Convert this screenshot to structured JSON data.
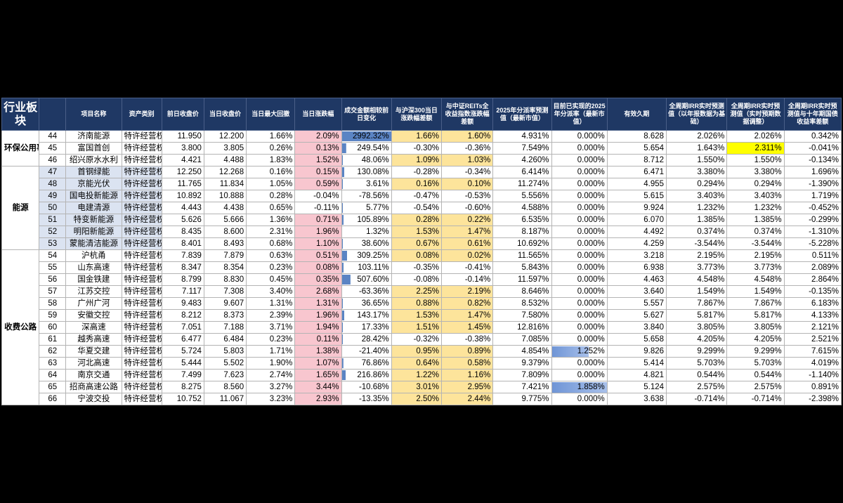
{
  "headers": [
    "行业板块",
    "",
    "项目名称",
    "资产类别",
    "前日收盘价",
    "当日收盘价",
    "当日最大回撤",
    "当日涨跌幅",
    "成交金额相较前日变化",
    "与沪深300当日涨跌幅差额",
    "与中证REITs全收益指数涨跌幅差额",
    "2025年分派率预测值（最新市值）",
    "目前已实现的2025年分派率（最新市值）",
    "有效久期",
    "全周期IRR实时预测值（以年报数据为基础）",
    "全周期IRR实时预测值（实时预期数据调整）",
    "全周期IRR实时预测值与十年期国债收益率差额"
  ],
  "sectors": [
    {
      "label": "环保公用事业",
      "rows": 3
    },
    {
      "label": "能源",
      "rows": 7
    },
    {
      "label": "收费公路",
      "rows": 13
    }
  ],
  "rows": [
    {
      "idx": "44",
      "name": "济南能源",
      "type": "特许经营权",
      "prev": "11.950",
      "close": "12.200",
      "dd": "1.66%",
      "chg": "2.09%",
      "chg_hl": "red",
      "vol": "2992.32%",
      "vol_bar": 1.0,
      "hs": "1.66%",
      "hs_hl": "yel",
      "reits": "1.60%",
      "reits_hl": "yel",
      "dist": "4.931%",
      "real": "0.000%",
      "real_bar": 0,
      "dur": "8.628",
      "irr1": "2.026%",
      "irr2": "2.026%",
      "irr2_hl": "",
      "spread": "0.342%"
    },
    {
      "idx": "45",
      "name": "富国首创",
      "type": "特许经营权",
      "prev": "3.800",
      "close": "3.805",
      "dd": "0.26%",
      "chg": "0.13%",
      "chg_hl": "red",
      "vol": "249.54%",
      "vol_bar": 0.083,
      "hs": "-0.30%",
      "hs_hl": "",
      "reits": "-0.36%",
      "reits_hl": "",
      "dist": "7.549%",
      "real": "0.000%",
      "real_bar": 0,
      "dur": "5.654",
      "irr1": "1.643%",
      "irr2": "2.311%",
      "irr2_hl": "hl",
      "spread": "-0.041%"
    },
    {
      "idx": "46",
      "name": "绍兴原水水利",
      "type": "特许经营权",
      "prev": "4.421",
      "close": "4.488",
      "dd": "1.83%",
      "chg": "1.52%",
      "chg_hl": "red",
      "vol": "48.06%",
      "vol_bar": 0.016,
      "hs": "1.09%",
      "hs_hl": "yel",
      "reits": "1.03%",
      "reits_hl": "yel",
      "dist": "4.260%",
      "real": "0.000%",
      "real_bar": 0,
      "dur": "8.712",
      "irr1": "1.550%",
      "irr2": "1.550%",
      "irr2_hl": "",
      "spread": "-0.134%"
    },
    {
      "idx": "47",
      "name": "首钢绿能",
      "type": "特许经营权",
      "prev": "12.250",
      "close": "12.268",
      "dd": "0.16%",
      "chg": "0.15%",
      "chg_hl": "red",
      "vol": "130.08%",
      "vol_bar": 0.043,
      "hs": "-0.28%",
      "hs_hl": "",
      "reits": "-0.34%",
      "reits_hl": "",
      "dist": "6.414%",
      "real": "0.000%",
      "real_bar": 0,
      "dur": "6.471",
      "irr1": "3.380%",
      "irr2": "3.380%",
      "irr2_hl": "",
      "spread": "1.696%"
    },
    {
      "idx": "48",
      "name": "京能光伏",
      "type": "特许经营权",
      "prev": "11.765",
      "close": "11.834",
      "dd": "1.05%",
      "chg": "0.59%",
      "chg_hl": "red",
      "vol": "3.61%",
      "vol_bar": 0.001,
      "hs": "0.16%",
      "hs_hl": "yel",
      "reits": "0.10%",
      "reits_hl": "yel",
      "dist": "11.274%",
      "real": "0.000%",
      "real_bar": 0,
      "dur": "4.955",
      "irr1": "0.294%",
      "irr2": "0.294%",
      "irr2_hl": "",
      "spread": "-1.390%"
    },
    {
      "idx": "49",
      "name": "国电投新能源",
      "type": "特许经营权",
      "prev": "10.892",
      "close": "10.888",
      "dd": "0.28%",
      "chg": "-0.04%",
      "chg_hl": "",
      "vol": "-78.56%",
      "vol_bar": 0,
      "hs": "-0.47%",
      "hs_hl": "",
      "reits": "-0.53%",
      "reits_hl": "",
      "dist": "5.556%",
      "real": "0.000%",
      "real_bar": 0,
      "dur": "5.615",
      "irr1": "3.403%",
      "irr2": "3.403%",
      "irr2_hl": "",
      "spread": "1.719%"
    },
    {
      "idx": "50",
      "name": "电建清源",
      "type": "特许经营权",
      "prev": "4.443",
      "close": "4.438",
      "dd": "0.65%",
      "chg": "-0.11%",
      "chg_hl": "",
      "vol": "5.77%",
      "vol_bar": 0.002,
      "hs": "-0.54%",
      "hs_hl": "",
      "reits": "-0.60%",
      "reits_hl": "",
      "dist": "4.588%",
      "real": "0.000%",
      "real_bar": 0,
      "dur": "9.924",
      "irr1": "1.232%",
      "irr2": "1.232%",
      "irr2_hl": "",
      "spread": "-0.452%"
    },
    {
      "idx": "51",
      "name": "特变新能源",
      "type": "特许经营权",
      "prev": "5.626",
      "close": "5.666",
      "dd": "1.36%",
      "chg": "0.71%",
      "chg_hl": "red",
      "vol": "105.89%",
      "vol_bar": 0.035,
      "hs": "0.28%",
      "hs_hl": "yel",
      "reits": "0.22%",
      "reits_hl": "yel",
      "dist": "6.535%",
      "real": "0.000%",
      "real_bar": 0,
      "dur": "6.070",
      "irr1": "1.385%",
      "irr2": "1.385%",
      "irr2_hl": "",
      "spread": "-0.299%"
    },
    {
      "idx": "52",
      "name": "明阳新能源",
      "type": "特许经营权",
      "prev": "8.435",
      "close": "8.600",
      "dd": "2.31%",
      "chg": "1.96%",
      "chg_hl": "red",
      "vol": "1.32%",
      "vol_bar": 0.0,
      "hs": "1.53%",
      "hs_hl": "yel",
      "reits": "1.47%",
      "reits_hl": "yel",
      "dist": "8.187%",
      "real": "0.000%",
      "real_bar": 0,
      "dur": "4.492",
      "irr1": "0.374%",
      "irr2": "0.374%",
      "irr2_hl": "",
      "spread": "-1.310%"
    },
    {
      "idx": "53",
      "name": "蒙能清洁能源",
      "type": "特许经营权",
      "prev": "8.401",
      "close": "8.493",
      "dd": "0.68%",
      "chg": "1.10%",
      "chg_hl": "red",
      "vol": "38.60%",
      "vol_bar": 0.013,
      "hs": "0.67%",
      "hs_hl": "yel",
      "reits": "0.61%",
      "reits_hl": "yel",
      "dist": "10.692%",
      "real": "0.000%",
      "real_bar": 0,
      "dur": "4.259",
      "irr1": "-3.544%",
      "irr2": "-3.544%",
      "irr2_hl": "",
      "spread": "-5.228%"
    },
    {
      "idx": "54",
      "name": "沪杭甬",
      "type": "特许经营权",
      "prev": "7.839",
      "close": "7.879",
      "dd": "0.63%",
      "chg": "0.51%",
      "chg_hl": "red",
      "vol": "309.25%",
      "vol_bar": 0.103,
      "hs": "0.08%",
      "hs_hl": "yel",
      "reits": "0.02%",
      "reits_hl": "yel",
      "dist": "11.565%",
      "real": "0.000%",
      "real_bar": 0,
      "dur": "3.218",
      "irr1": "2.195%",
      "irr2": "2.195%",
      "irr2_hl": "",
      "spread": "0.511%"
    },
    {
      "idx": "55",
      "name": "山东高速",
      "type": "特许经营权",
      "prev": "8.347",
      "close": "8.354",
      "dd": "0.23%",
      "chg": "0.08%",
      "chg_hl": "red",
      "vol": "103.11%",
      "vol_bar": 0.034,
      "hs": "-0.35%",
      "hs_hl": "",
      "reits": "-0.41%",
      "reits_hl": "",
      "dist": "5.843%",
      "real": "0.000%",
      "real_bar": 0,
      "dur": "6.938",
      "irr1": "3.773%",
      "irr2": "3.773%",
      "irr2_hl": "",
      "spread": "2.089%"
    },
    {
      "idx": "56",
      "name": "国金铁建",
      "type": "特许经营权",
      "prev": "8.799",
      "close": "8.830",
      "dd": "0.45%",
      "chg": "0.35%",
      "chg_hl": "red",
      "vol": "507.60%",
      "vol_bar": 0.17,
      "hs": "-0.08%",
      "hs_hl": "",
      "reits": "-0.14%",
      "reits_hl": "",
      "dist": "11.597%",
      "real": "0.000%",
      "real_bar": 0,
      "dur": "4.463",
      "irr1": "4.548%",
      "irr2": "4.548%",
      "irr2_hl": "",
      "spread": "2.864%"
    },
    {
      "idx": "57",
      "name": "江苏交控",
      "type": "特许经营权",
      "prev": "7.117",
      "close": "7.308",
      "dd": "3.40%",
      "chg": "2.68%",
      "chg_hl": "red",
      "vol": "-63.36%",
      "vol_bar": 0,
      "hs": "2.25%",
      "hs_hl": "yel",
      "reits": "2.19%",
      "reits_hl": "yel",
      "dist": "8.646%",
      "real": "0.000%",
      "real_bar": 0,
      "dur": "3.640",
      "irr1": "1.549%",
      "irr2": "1.549%",
      "irr2_hl": "",
      "spread": "-0.135%"
    },
    {
      "idx": "58",
      "name": "广州广河",
      "type": "特许经营权",
      "prev": "9.483",
      "close": "9.607",
      "dd": "1.31%",
      "chg": "1.31%",
      "chg_hl": "red",
      "vol": "36.65%",
      "vol_bar": 0.012,
      "hs": "0.88%",
      "hs_hl": "yel",
      "reits": "0.82%",
      "reits_hl": "yel",
      "dist": "8.532%",
      "real": "0.000%",
      "real_bar": 0,
      "dur": "5.557",
      "irr1": "7.867%",
      "irr2": "7.867%",
      "irr2_hl": "",
      "spread": "6.183%"
    },
    {
      "idx": "59",
      "name": "安徽交控",
      "type": "特许经营权",
      "prev": "8.212",
      "close": "8.373",
      "dd": "2.39%",
      "chg": "1.96%",
      "chg_hl": "red",
      "vol": "143.17%",
      "vol_bar": 0.048,
      "hs": "1.53%",
      "hs_hl": "yel",
      "reits": "1.47%",
      "reits_hl": "yel",
      "dist": "7.580%",
      "real": "0.000%",
      "real_bar": 0,
      "dur": "5.627",
      "irr1": "5.817%",
      "irr2": "5.817%",
      "irr2_hl": "",
      "spread": "4.133%"
    },
    {
      "idx": "60",
      "name": "深高速",
      "type": "特许经营权",
      "prev": "7.051",
      "close": "7.188",
      "dd": "3.71%",
      "chg": "1.94%",
      "chg_hl": "red",
      "vol": "17.33%",
      "vol_bar": 0.006,
      "hs": "1.51%",
      "hs_hl": "yel",
      "reits": "1.45%",
      "reits_hl": "yel",
      "dist": "12.816%",
      "real": "0.000%",
      "real_bar": 0,
      "dur": "3.840",
      "irr1": "3.805%",
      "irr2": "3.805%",
      "irr2_hl": "",
      "spread": "2.121%"
    },
    {
      "idx": "61",
      "name": "越秀高速",
      "type": "特许经营权",
      "prev": "6.477",
      "close": "6.484",
      "dd": "0.23%",
      "chg": "0.11%",
      "chg_hl": "red",
      "vol": "28.42%",
      "vol_bar": 0.009,
      "hs": "-0.32%",
      "hs_hl": "",
      "reits": "-0.38%",
      "reits_hl": "",
      "dist": "7.085%",
      "real": "0.000%",
      "real_bar": 0,
      "dur": "5.658",
      "irr1": "4.205%",
      "irr2": "4.205%",
      "irr2_hl": "",
      "spread": "2.521%"
    },
    {
      "idx": "62",
      "name": "华夏交建",
      "type": "特许经营权",
      "prev": "5.724",
      "close": "5.803",
      "dd": "1.71%",
      "chg": "1.38%",
      "chg_hl": "red",
      "vol": "-21.40%",
      "vol_bar": 0,
      "hs": "0.95%",
      "hs_hl": "yel",
      "reits": "0.89%",
      "reits_hl": "yel",
      "dist": "4.854%",
      "real": "1.252%",
      "real_bar": 0.67,
      "dur": "9.826",
      "irr1": "9.299%",
      "irr2": "9.299%",
      "irr2_hl": "",
      "spread": "7.615%"
    },
    {
      "idx": "63",
      "name": "河北高速",
      "type": "特许经营权",
      "prev": "5.444",
      "close": "5.502",
      "dd": "1.90%",
      "chg": "1.07%",
      "chg_hl": "red",
      "vol": "76.86%",
      "vol_bar": 0.026,
      "hs": "0.64%",
      "hs_hl": "yel",
      "reits": "0.58%",
      "reits_hl": "yel",
      "dist": "9.379%",
      "real": "0.000%",
      "real_bar": 0,
      "dur": "5.414",
      "irr1": "5.703%",
      "irr2": "5.703%",
      "irr2_hl": "",
      "spread": "4.019%"
    },
    {
      "idx": "64",
      "name": "南京交通",
      "type": "特许经营权",
      "prev": "7.499",
      "close": "7.623",
      "dd": "2.74%",
      "chg": "1.65%",
      "chg_hl": "red",
      "vol": "216.86%",
      "vol_bar": 0.072,
      "hs": "1.22%",
      "hs_hl": "yel",
      "reits": "1.16%",
      "reits_hl": "yel",
      "dist": "7.809%",
      "real": "0.000%",
      "real_bar": 0,
      "dur": "4.821",
      "irr1": "0.544%",
      "irr2": "0.544%",
      "irr2_hl": "",
      "spread": "-1.140%"
    },
    {
      "idx": "65",
      "name": "招商高速公路",
      "type": "特许经营权",
      "prev": "8.275",
      "close": "8.560",
      "dd": "3.27%",
      "chg": "3.44%",
      "chg_hl": "red",
      "vol": "-10.68%",
      "vol_bar": 0,
      "hs": "3.01%",
      "hs_hl": "yel",
      "reits": "2.95%",
      "reits_hl": "yel",
      "dist": "7.421%",
      "real": "1.858%",
      "real_bar": 1.0,
      "dur": "5.124",
      "irr1": "2.575%",
      "irr2": "2.575%",
      "irr2_hl": "",
      "spread": "0.891%"
    },
    {
      "idx": "66",
      "name": "宁波交投",
      "type": "特许经营权",
      "prev": "10.752",
      "close": "11.067",
      "dd": "3.23%",
      "chg": "2.93%",
      "chg_hl": "red",
      "vol": "-13.35%",
      "vol_bar": 0,
      "hs": "2.50%",
      "hs_hl": "yel",
      "reits": "2.44%",
      "reits_hl": "yel",
      "dist": "9.775%",
      "real": "0.000%",
      "real_bar": 0,
      "dur": "3.638",
      "irr1": "-0.714%",
      "irr2": "-0.714%",
      "irr2_hl": "",
      "spread": "-2.398%"
    }
  ],
  "colors": {
    "header_bg": "#1f3864",
    "red_fill": "#f8c6cf",
    "yellow_fill": "#fde49b",
    "highlight": "#ffff00",
    "bar_blue": "#5b84c4",
    "band_blue": "#dbe3f1"
  }
}
